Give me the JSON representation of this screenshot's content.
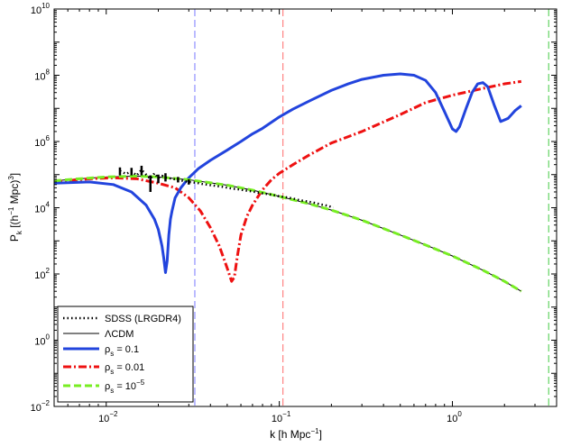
{
  "chart_data": {
    "type": "line",
    "title": "",
    "xlabel": "k [h Mpc",
    "xlabel_sup": "−1",
    "xlabel_end": "]",
    "ylabel": "P",
    "ylabel_sub": "k",
    "ylabel_mid": " [(h",
    "ylabel_sup": "−1",
    "ylabel_end": " Mpc)",
    "ylabel_sup2": "3",
    "ylabel_close": "]",
    "xscale": "log",
    "yscale": "log",
    "xlim": [
      0.005,
      4.0
    ],
    "ylim": [
      0.01,
      10000000000
    ],
    "grid": false,
    "legend_position": "bottom-left",
    "x_ticks": [
      {
        "value": 0.01,
        "base": "10",
        "exp": "−2"
      },
      {
        "value": 0.1,
        "base": "10",
        "exp": "−1"
      },
      {
        "value": 1,
        "base": "10",
        "exp": "0"
      }
    ],
    "y_ticks": [
      {
        "value": 0.01,
        "base": "10",
        "exp": "−2"
      },
      {
        "value": 1,
        "base": "10",
        "exp": "0"
      },
      {
        "value": 100,
        "base": "10",
        "exp": "2"
      },
      {
        "value": 10000,
        "base": "10",
        "exp": "4"
      },
      {
        "value": 1000000,
        "base": "10",
        "exp": "6"
      },
      {
        "value": 100000000,
        "base": "10",
        "exp": "8"
      },
      {
        "value": 10000000000,
        "base": "10",
        "exp": "10"
      }
    ],
    "vertical_lines": [
      {
        "x": 0.0325,
        "color": "#7b7bff"
      },
      {
        "x": 0.105,
        "color": "#ff6a6a"
      },
      {
        "x": 3.6,
        "color": "#44cc44"
      }
    ],
    "series": [
      {
        "name": "SDSS (LRGDR4)",
        "label_prefix": "SDSS (LRGDR4)",
        "color": "#000000",
        "style": "dotted",
        "width": 2.5,
        "x": [
          0.012,
          0.013,
          0.014,
          0.015,
          0.016,
          0.017,
          0.018,
          0.019,
          0.02,
          0.021,
          0.022,
          0.024,
          0.026,
          0.028,
          0.03,
          0.033,
          0.036,
          0.04,
          0.044,
          0.048,
          0.053,
          0.058,
          0.064,
          0.07,
          0.077,
          0.085,
          0.093,
          0.1,
          0.11,
          0.12,
          0.13,
          0.145,
          0.16,
          0.175,
          0.19,
          0.205
        ],
        "y": [
          130000,
          105000,
          125000,
          95000,
          140000,
          100000,
          75000,
          110000,
          78000,
          92000,
          82000,
          75000,
          70000,
          64000,
          60000,
          57000,
          52000,
          48000,
          45000,
          42000,
          38000,
          36000,
          33000,
          31000,
          28000,
          26000,
          24000,
          22000,
          20500,
          19000,
          17000,
          15500,
          14000,
          12500,
          11500,
          10000
        ],
        "errors": [
          {
            "x": 0.012,
            "lo": 95000,
            "hi": 165000
          },
          {
            "x": 0.014,
            "lo": 95000,
            "hi": 160000
          },
          {
            "x": 0.016,
            "lo": 95000,
            "hi": 185000
          },
          {
            "x": 0.018,
            "lo": 30000,
            "hi": 95000
          },
          {
            "x": 0.02,
            "lo": 55000,
            "hi": 100000
          },
          {
            "x": 0.022,
            "lo": 62000,
            "hi": 110000
          },
          {
            "x": 0.026,
            "lo": 58000,
            "hi": 85000
          },
          {
            "x": 0.03,
            "lo": 50000,
            "hi": 72000
          }
        ]
      },
      {
        "name": "ΛCDM",
        "label_prefix": "ΛCDM",
        "color": "#000000",
        "style": "solid",
        "width": 1,
        "x": [
          0.005,
          0.007,
          0.01,
          0.015,
          0.02,
          0.03,
          0.05,
          0.07,
          0.1,
          0.15,
          0.2,
          0.3,
          0.5,
          0.7,
          1.0,
          1.5,
          2.0,
          2.5
        ],
        "y": [
          65000,
          75000,
          85000,
          90000,
          85000,
          70000,
          48000,
          34000,
          22000,
          13000,
          8500,
          4200,
          1500,
          750,
          350,
          130,
          60,
          30
        ]
      },
      {
        "name": "rho_s = 0.1",
        "label_prefix": "ρ",
        "label_sub": "s",
        "label_suffix": " = 0.1",
        "color": "#2244dd",
        "style": "solid",
        "width": 3,
        "x": [
          0.005,
          0.008,
          0.011,
          0.014,
          0.017,
          0.019,
          0.02,
          0.021,
          0.0215,
          0.022,
          0.0225,
          0.023,
          0.0235,
          0.024,
          0.025,
          0.027,
          0.03,
          0.034,
          0.04,
          0.05,
          0.06,
          0.07,
          0.08,
          0.1,
          0.12,
          0.15,
          0.2,
          0.25,
          0.3,
          0.4,
          0.5,
          0.6,
          0.7,
          0.8,
          0.9,
          1.0,
          1.05,
          1.1,
          1.2,
          1.3,
          1.4,
          1.5,
          1.6,
          1.75,
          1.9,
          2.1,
          2.3,
          2.5
        ],
        "y": [
          55000,
          60000,
          50000,
          30000,
          12000,
          4500,
          2200,
          700,
          300,
          110,
          250,
          1500,
          4500,
          8000,
          20000,
          40000,
          80000,
          150000,
          270000,
          550000,
          1000000,
          1700000,
          2500000,
          5500000,
          9500000,
          17000000,
          35000000,
          55000000,
          75000000,
          100000000,
          110000000,
          100000000,
          70000000,
          30000000,
          8000000,
          2400000,
          2000000,
          2800000,
          10000000,
          30000000,
          55000000,
          60000000,
          45000000,
          12000000,
          4000000,
          5000000,
          8500000,
          12000000
        ]
      },
      {
        "name": "rho_s = 0.01",
        "label_prefix": "ρ",
        "label_sub": "s",
        "label_suffix": " = 0.01",
        "color": "#ee1111",
        "style": "dashdot",
        "width": 3,
        "x": [
          0.005,
          0.008,
          0.011,
          0.015,
          0.02,
          0.025,
          0.03,
          0.035,
          0.04,
          0.045,
          0.05,
          0.053,
          0.055,
          0.057,
          0.06,
          0.065,
          0.07,
          0.08,
          0.09,
          0.1,
          0.12,
          0.15,
          0.2,
          0.3,
          0.5,
          0.7,
          1.0,
          1.5,
          2.0,
          2.5
        ],
        "y": [
          60000,
          75000,
          80000,
          75000,
          55000,
          40000,
          20000,
          8000,
          2500,
          700,
          150,
          60,
          80,
          300,
          1500,
          5500,
          12000,
          35000,
          70000,
          110000,
          200000,
          400000,
          900000,
          2000000,
          6500000,
          15000000,
          25000000,
          40000000,
          55000000,
          65000000
        ]
      },
      {
        "name": "rho_s = 1e-5",
        "label_prefix": "ρ",
        "label_sub": "s",
        "label_suffix": " = 10",
        "label_sup": "−5",
        "color": "#77ee22",
        "style": "dashed",
        "width": 3,
        "x": [
          0.005,
          0.007,
          0.01,
          0.015,
          0.02,
          0.03,
          0.05,
          0.07,
          0.1,
          0.15,
          0.2,
          0.3,
          0.5,
          0.7,
          1.0,
          1.5,
          2.0,
          2.5
        ],
        "y": [
          65000,
          75000,
          85000,
          90000,
          85000,
          70000,
          48000,
          34000,
          22000,
          13000,
          8500,
          4200,
          1500,
          750,
          350,
          130,
          60,
          30
        ]
      }
    ]
  }
}
